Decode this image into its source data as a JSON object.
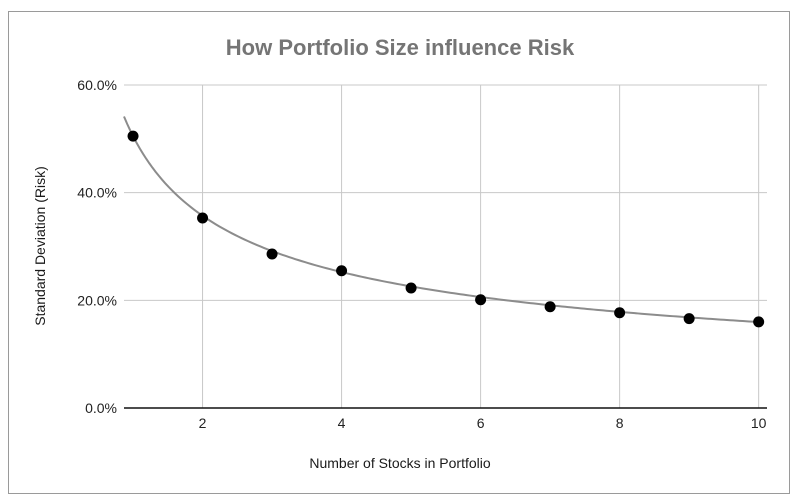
{
  "chart_data": {
    "type": "scatter",
    "title": "How Portfolio Size influence Risk",
    "xlabel": "Number of Stocks in Portfolio",
    "ylabel": "Standard Deviation (Risk)",
    "x": [
      1,
      2,
      3,
      4,
      5,
      6,
      7,
      8,
      9,
      10
    ],
    "series": [
      {
        "name": "Standard Deviation",
        "values": [
          50.5,
          35.3,
          28.6,
          25.5,
          22.3,
          20.1,
          18.8,
          17.7,
          16.6,
          16.0
        ],
        "marker": "circle",
        "color": "#000000"
      }
    ],
    "trendline": {
      "type": "power",
      "formula": "50.5 * x^-0.5",
      "color": "#8c8c8c",
      "x_start": 0.87,
      "x_end": 10
    },
    "xlim": [
      0.87,
      10.12
    ],
    "ylim": [
      0,
      60
    ],
    "x_ticks": [
      2,
      4,
      6,
      8,
      10
    ],
    "y_ticks": [
      0,
      20,
      40,
      60
    ],
    "y_tick_labels": [
      "0.0%",
      "20.0%",
      "40.0%",
      "60.0%"
    ],
    "x_tick_labels": [
      "2",
      "4",
      "6",
      "8",
      "10"
    ],
    "grid": true,
    "legend": "none"
  }
}
